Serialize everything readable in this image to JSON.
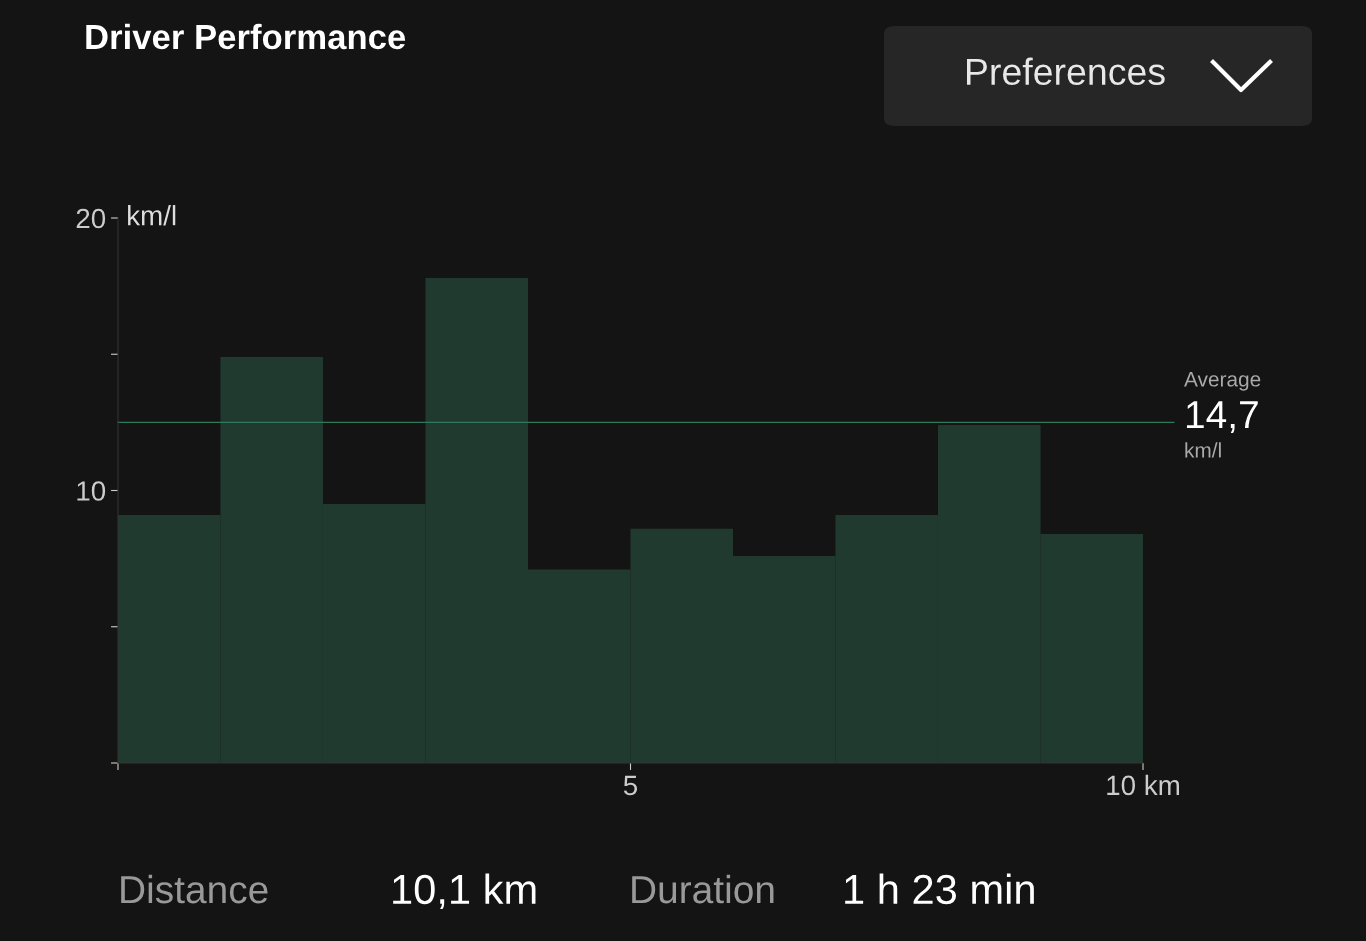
{
  "chart_data": {
    "type": "histogram",
    "title": "Driver Performance",
    "ylabel": "km/l",
    "bins": [
      0,
      1,
      2,
      3,
      4,
      5,
      6,
      7,
      8,
      9,
      10
    ],
    "values": [
      9.1,
      14.9,
      9.5,
      17.8,
      7.1,
      8.6,
      7.6,
      9.1,
      12.4,
      8.4
    ],
    "color": "#203a30",
    "xlim": [
      0,
      10
    ],
    "ylim": [
      0,
      20
    ],
    "xticks": [
      {
        "value": 0,
        "label": null
      },
      5,
      {
        "value": 10,
        "label": "10 km"
      }
    ],
    "yticks": [
      {
        "value": 0,
        "label": null
      },
      {
        "value": 5,
        "label": null
      },
      10,
      {
        "value": 15,
        "label": null
      },
      20
    ],
    "grid": false,
    "ref_lines": [
      {
        "axis": "y",
        "value": 12.5,
        "color": "#2f7a5a"
      }
    ],
    "annotations": [
      "Preferences",
      "Average",
      "14,7",
      "km/l",
      "Distance",
      "10,1 km",
      "Duration",
      "1 h 23 min"
    ]
  }
}
